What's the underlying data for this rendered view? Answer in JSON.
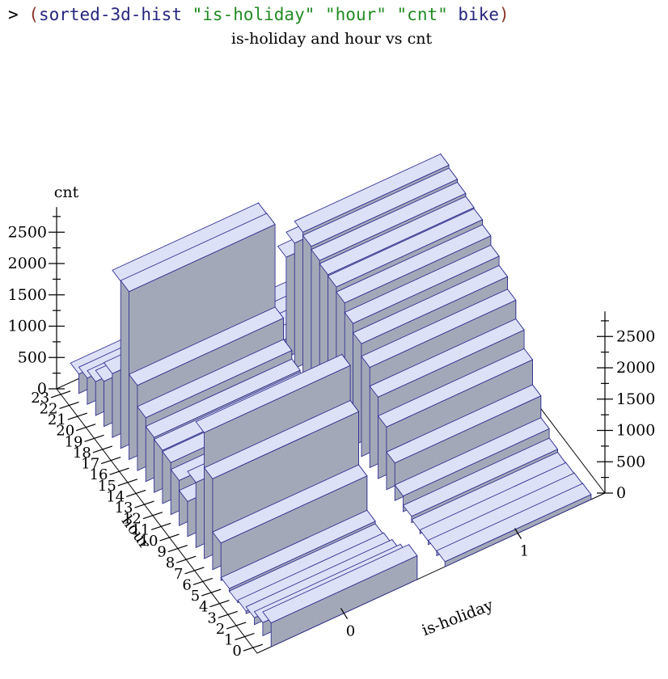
{
  "repl": {
    "prompt": ">",
    "open_paren": "(",
    "function_name": "sorted-3d-hist",
    "arg1": "\"is-holiday\"",
    "arg2": "\"hour\"",
    "arg3": "\"cnt\"",
    "arg4": "bike",
    "close_paren": ")"
  },
  "colors": {
    "bar_top": "#dde1f7",
    "bar_front": "#a3a8b8",
    "bar_side": "#c8cce8",
    "bar_edge": "#23238b",
    "axis": "#000000"
  },
  "chart_data": {
    "type": "bar3d",
    "title": "is-holiday and hour vs cnt",
    "xlabel": "is-holiday",
    "ylabel": "hour",
    "zlabel": "cnt",
    "x_categories": [
      "0",
      "1"
    ],
    "y_ticks": [
      "23",
      "22",
      "21",
      "20",
      "19",
      "18",
      "17",
      "16",
      "15",
      "14",
      "13",
      "12",
      "11",
      "10",
      "9",
      "8",
      "7",
      "6",
      "5",
      "4",
      "3",
      "2",
      "1",
      "0"
    ],
    "z_ticks": [
      "0",
      "500",
      "1000",
      "1500",
      "2000",
      "2500"
    ],
    "zlim": [
      0,
      2900
    ],
    "series": [
      {
        "x": "0",
        "hours": [
          23,
          22,
          21,
          20,
          19,
          18,
          17,
          16,
          15,
          14,
          13,
          12,
          11,
          10,
          9,
          8,
          7,
          6,
          5,
          4,
          3,
          2,
          1,
          0
        ],
        "values": [
          310,
          420,
          540,
          720,
          1020,
          2670,
          2680,
          1360,
          1020,
          880,
          850,
          830,
          720,
          560,
          1040,
          2010,
          1450,
          600,
          50,
          10,
          40,
          110,
          210,
          380
        ]
      },
      {
        "x": "1",
        "hours": [
          23,
          22,
          21,
          20,
          19,
          18,
          17,
          16,
          15,
          14,
          13,
          12,
          11,
          10,
          9,
          8,
          7,
          6,
          5,
          4,
          3,
          2,
          1,
          0
        ],
        "values": [
          20,
          30,
          40,
          60,
          1600,
          2000,
          2350,
          2300,
          2250,
          2200,
          2180,
          2100,
          1950,
          1800,
          1600,
          1300,
          1000,
          600,
          250,
          100,
          50,
          60,
          70,
          80
        ]
      }
    ]
  }
}
